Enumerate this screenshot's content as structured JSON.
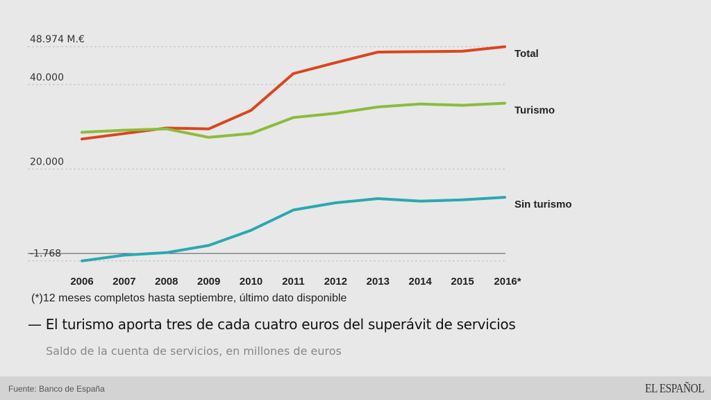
{
  "chart_data": {
    "type": "line",
    "title": "El turismo aporta tres de cada cuatro euros del superávit de servicios",
    "subtitle": "Saldo de la cuenta de servicios, en millones de euros",
    "xlabel": "",
    "ylabel": "",
    "x": [
      "2006",
      "2007",
      "2008",
      "2009",
      "2010",
      "2011",
      "2012",
      "2013",
      "2014",
      "2015",
      "2016*"
    ],
    "series": [
      {
        "name": "Total",
        "color": "#d9461e",
        "values": [
          27100,
          28400,
          29700,
          29500,
          33900,
          42600,
          45200,
          47700,
          47800,
          47900,
          48974
        ]
      },
      {
        "name": "Turismo",
        "color": "#8cbc3c",
        "values": [
          28700,
          29200,
          29500,
          27500,
          28400,
          32200,
          33200,
          34700,
          35400,
          35100,
          35600
        ]
      },
      {
        "name": "Sin turismo",
        "color": "#2aa8b2",
        "values": [
          -1768,
          -400,
          200,
          1900,
          5500,
          10300,
          12000,
          13000,
          12400,
          12700,
          13300
        ]
      }
    ],
    "y_ticks": [
      {
        "value": 48974,
        "label": "48.974 M.€"
      },
      {
        "value": 40000,
        "label": "40.000"
      },
      {
        "value": 20000,
        "label": "20.000"
      },
      {
        "value": -1768,
        "label": "-1.768"
      }
    ],
    "zero_line": true,
    "ylim": [
      -1768,
      48974
    ],
    "grid": true,
    "legend": "inline-right",
    "footnote": "(*)12 meses completos hasta septiembre, último dato disponible"
  },
  "footer": {
    "source": "Fuente: Banco de España",
    "brand": "EL ESPAÑOL"
  },
  "title_dash": "—"
}
